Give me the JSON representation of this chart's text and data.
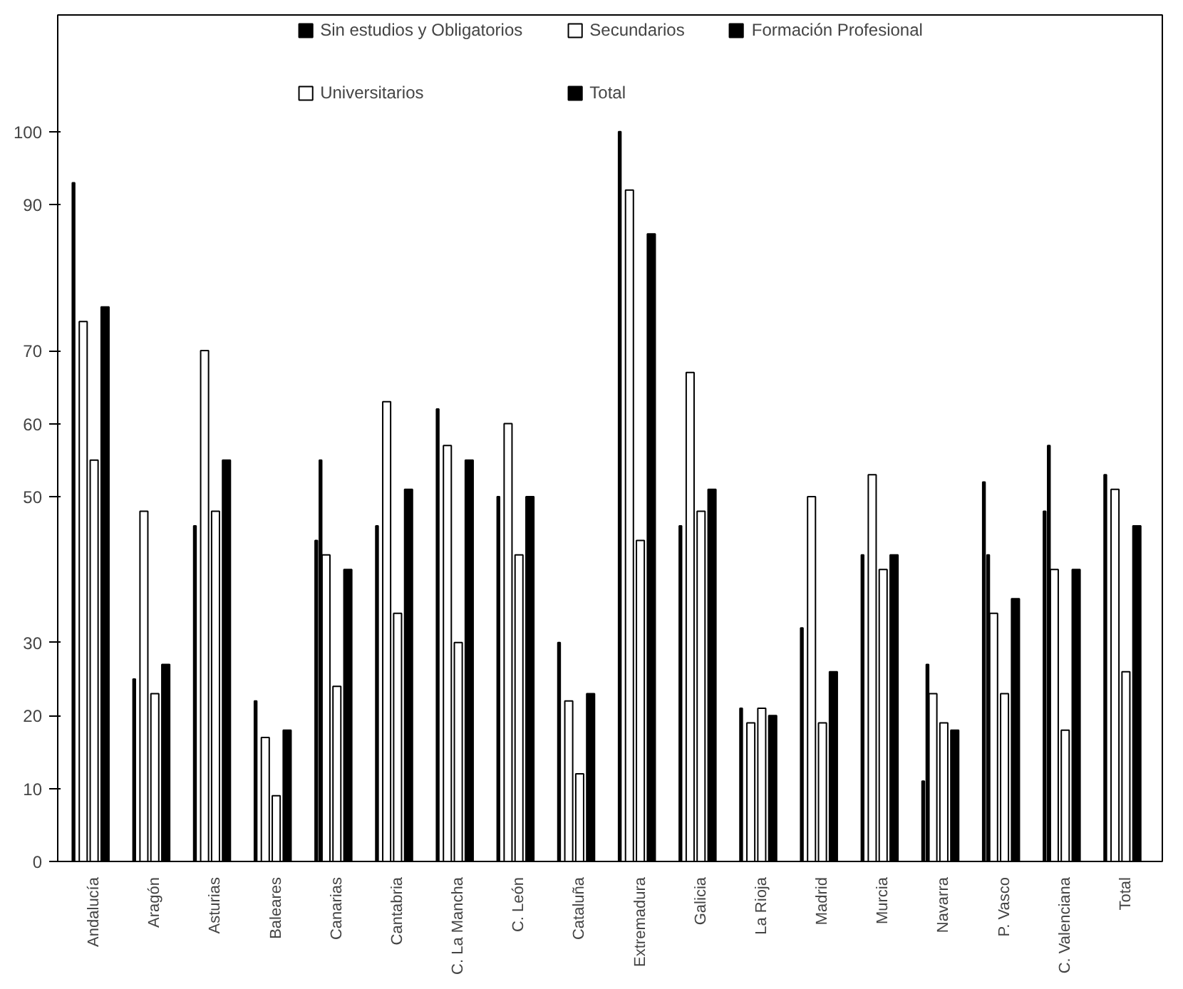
{
  "chart_data": {
    "type": "bar",
    "categories": [
      "Andalucía",
      "Aragón",
      "Asturias",
      "Baleares",
      "Canarias",
      "Cantabria",
      "C. La Mancha",
      "C. León",
      "Cataluña",
      "Extremadura",
      "Galicia",
      "La Rioja",
      "Madrid",
      "Murcia",
      "Navarra",
      "P. Vasco",
      "C. Valenciana",
      "Total"
    ],
    "series": [
      {
        "name": "Sin estudios y Obligatorios",
        "color": "#000000",
        "values": [
          93,
          25,
          46,
          22,
          44,
          46,
          62,
          50,
          30,
          100,
          46,
          21,
          32,
          42,
          11,
          52,
          48,
          53
        ]
      },
      {
        "name": "Secundarios",
        "color": "#ffffff",
        "values": [
          74,
          48,
          70,
          17,
          42,
          63,
          57,
          60,
          22,
          92,
          67,
          19,
          50,
          53,
          23,
          34,
          40,
          51
        ]
      },
      {
        "name": "Formación Profesional",
        "color": "#000000",
        "values": [
          null,
          null,
          null,
          null,
          55,
          null,
          null,
          null,
          null,
          null,
          null,
          null,
          null,
          null,
          27,
          42,
          57,
          null
        ]
      },
      {
        "name": "Universitarios",
        "color": "#ffffff",
        "values": [
          55,
          23,
          48,
          9,
          24,
          34,
          30,
          42,
          12,
          44,
          48,
          21,
          19,
          40,
          19,
          23,
          18,
          26
        ]
      },
      {
        "name": "Total",
        "color": "#000000",
        "values": [
          76,
          27,
          55,
          18,
          40,
          51,
          55,
          50,
          23,
          86,
          51,
          20,
          26,
          42,
          18,
          36,
          40,
          46
        ]
      }
    ],
    "ylim": [
      0,
      116
    ],
    "yticks": [
      0,
      10,
      20,
      30,
      50,
      60,
      70,
      90,
      100
    ],
    "legend": "top",
    "grid": false
  }
}
